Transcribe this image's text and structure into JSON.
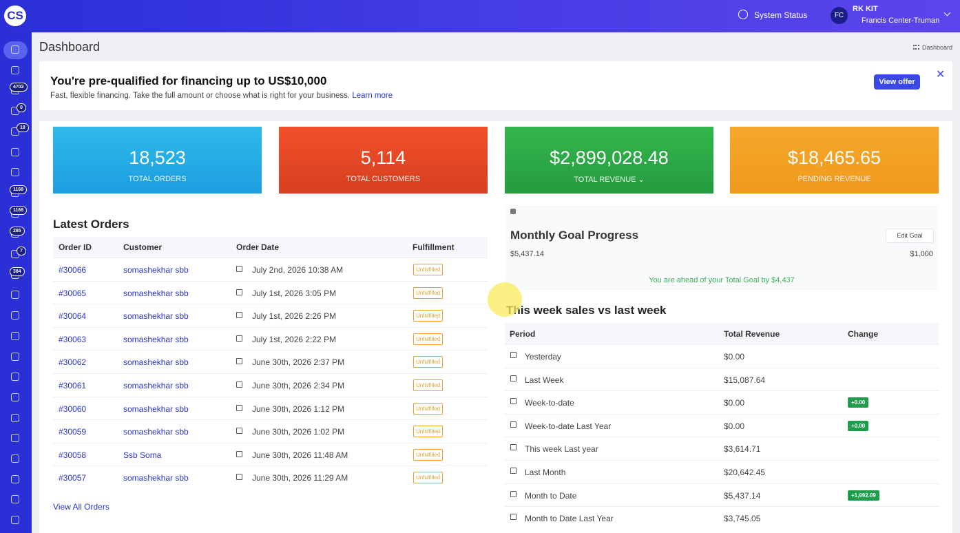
{
  "header": {
    "logo": "CS",
    "system_status": "System Status",
    "user_initials": "FC",
    "user_name": "RK KIT",
    "user_org": "Francis Center-Truman"
  },
  "sidebar": {
    "badges": [
      4702,
      0,
      19,
      1168,
      1168,
      285,
      7,
      384
    ]
  },
  "page": {
    "title": "Dashboard",
    "breadcrumb": "Dashboard"
  },
  "banner": {
    "title": "You're pre-qualified for financing up to US$10,000",
    "text": "Fast, flexible financing. Take the full amount or choose what is right for your business.",
    "link": "Learn more",
    "button": "View offer"
  },
  "stats": [
    {
      "value": "18,523",
      "label": "TOTAL ORDERS"
    },
    {
      "value": "5,114",
      "label": "TOTAL CUSTOMERS"
    },
    {
      "value": "$2,899,028.48",
      "label": "TOTAL REVENUE"
    },
    {
      "value": "$18,465.65",
      "label": "PENDING REVENUE"
    }
  ],
  "latest_orders": {
    "title": "Latest Orders",
    "headers": [
      "Order ID",
      "Customer",
      "Order Date",
      "Fulfillment"
    ],
    "rows": [
      [
        "#30066",
        "somashekhar sbb",
        "July 2nd, 2026 10:38 AM",
        "Unfulfilled"
      ],
      [
        "#30065",
        "somashekhar sbb",
        "July 1st, 2026 3:05 PM",
        "Unfulfilled"
      ],
      [
        "#30064",
        "somashekhar sbb",
        "July 1st, 2026 2:26 PM",
        "Unfulfilled"
      ],
      [
        "#30063",
        "somashekhar sbb",
        "July 1st, 2026 2:22 PM",
        "Unfulfilled"
      ],
      [
        "#30062",
        "somashekhar sbb",
        "June 30th, 2026 2:37 PM",
        "Unfulfilled"
      ],
      [
        "#30061",
        "somashekhar sbb",
        "June 30th, 2026 2:34 PM",
        "Unfulfilled"
      ],
      [
        "#30060",
        "somashekhar sbb",
        "June 30th, 2026 1:12 PM",
        "Unfulfilled"
      ],
      [
        "#30059",
        "somashekhar sbb",
        "June 30th, 2026 1:02 PM",
        "Unfulfilled"
      ],
      [
        "#30058",
        "Ssb Soma",
        "June 30th, 2026 11:48 AM",
        "Unfulfilled"
      ],
      [
        "#30057",
        "somashekhar sbb",
        "June 30th, 2026 11:29 AM",
        "Unfulfilled"
      ]
    ],
    "footer_link": "View All Orders"
  },
  "goal": {
    "title": "Monthly Goal Progress",
    "edit": "Edit Goal",
    "current": "$5,437.14",
    "target": "$1,000",
    "message": "You are ahead of your Total Goal by $4,437"
  },
  "weekly": {
    "title": "This week sales vs last week",
    "headers": [
      "Period",
      "Total Revenue",
      "Change"
    ],
    "rows": [
      {
        "period": "Yesterday",
        "revenue": "$0.00"
      },
      {
        "period": "Last Week",
        "revenue": "$15,087.64"
      },
      {
        "period": "Week-to-date",
        "revenue": "$0.00",
        "change": "+0.00"
      },
      {
        "period": "Week-to-date Last Year",
        "revenue": "$0.00",
        "change": "+0.00"
      },
      {
        "period": "This week Last year",
        "revenue": "$3,614.71"
      },
      {
        "period": "Last Month",
        "revenue": "$20,642.45"
      },
      {
        "period": "Month to Date",
        "revenue": "$5,437.14",
        "change": "+1,692.09"
      },
      {
        "period": "Month to Date Last Year",
        "revenue": "$3,745.05"
      }
    ]
  }
}
